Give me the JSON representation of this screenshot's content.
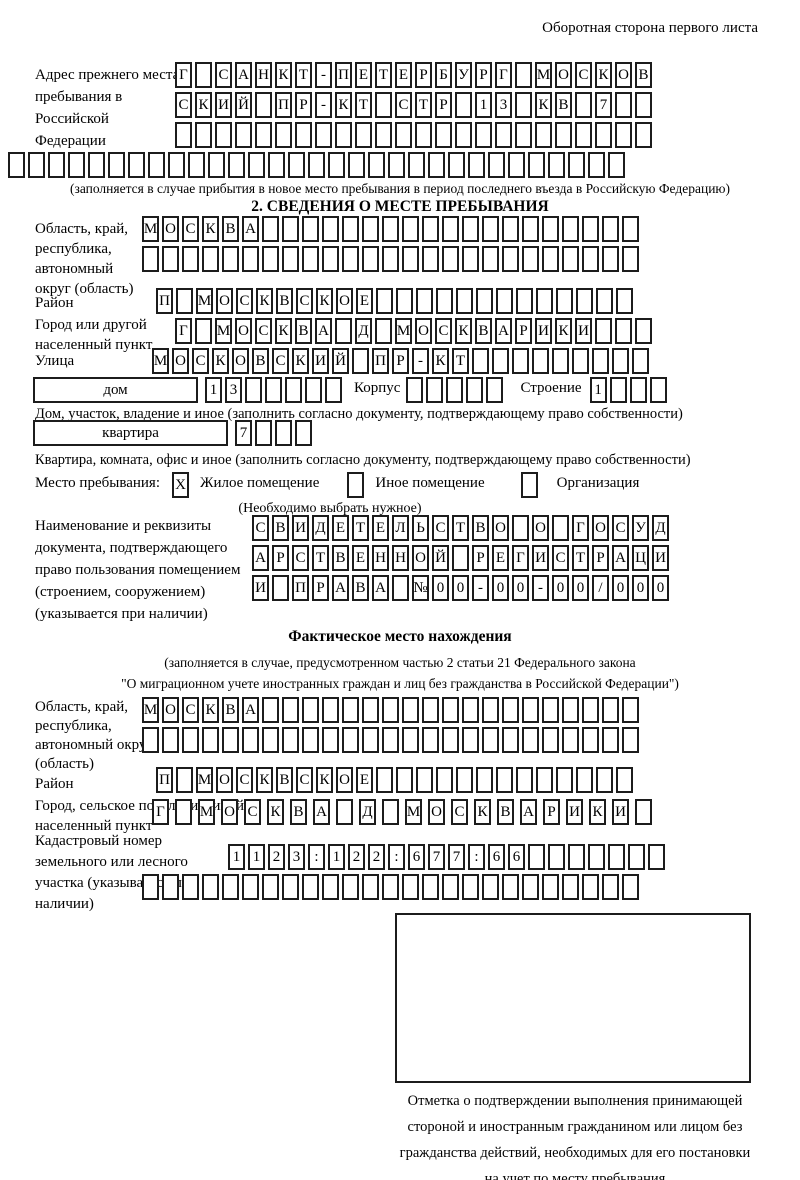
{
  "colors": {
    "ink": "#1c1c1c",
    "paper": "#ffffff"
  },
  "header_note": "Оборотная сторона первого листа",
  "prev_address": {
    "label": "Адрес прежнего места пребывания в Российской Федерации",
    "row1": "Г САНКТ-ПЕТЕРБУРГ МОСКОВ",
    "row2": "СКИЙ ПР-КТ СТР 13 КВ 7  ",
    "row3": "                        ",
    "row4": "                               ",
    "note": "(заполняется в случае прибытия в новое место пребывания в период последнего въезда в Российскую Федерацию)"
  },
  "section2": {
    "title": "2. СВЕДЕНИЯ О МЕСТЕ ПРЕБЫВАНИЯ",
    "region_label": "Область, край, республика, автономный округ (область)",
    "region_row1": "МОСКВА                   ",
    "region_row2": "                         ",
    "district_label": "Район",
    "district_row": "П МОСКВСКОЕ             ",
    "city_label": "Город или другой населенный пункт",
    "city_row": "Г МОСКВА Д МОСКВАРИКИ   ",
    "street_label": "Улица",
    "street_row": "МОСКОВСКИЙ ПР-КТ         ",
    "house_box_label": "дом",
    "house_cells": "13     ",
    "korpus_label": "Корпус",
    "korpus_cells": "     ",
    "stroenie_label": "Строение",
    "stroenie_cells": "1   ",
    "house_note": "Дом, участок, владение и иное (заполнить согласно документу, подтверждающему право собственности)",
    "apartment_box_label": "квартира",
    "apartment_cells": "7   ",
    "apartment_note": "Квартира, комната, офис и иное (заполнить согласно документу, подтверждающему право собственности)",
    "stay_label": "Место пребывания:",
    "stay_opt1_mark": "X",
    "stay_opt1_label": "Жилое помещение",
    "stay_opt2_mark": " ",
    "stay_opt2_label": "Иное помещение",
    "stay_opt3_mark": " ",
    "stay_opt3_label": "Организация",
    "stay_note": "(Необходимо выбрать нужное)",
    "document_label": "Наименование и реквизиты документа, подтверждающего право пользования помещением (строением, сооружением) (указывается при наличии)",
    "document_row1": "СВИДЕТЕЛЬСТВО О ГОСУД",
    "document_row2": "АРСТВЕННОЙ РЕГИСТРАЦИ",
    "document_row3": "И ПРАВА №00-00-00/000"
  },
  "actual": {
    "title": "Фактическое место нахождения",
    "note1": "(заполняется в случае, предусмотренном частью 2 статьи 21 Федерального закона",
    "note2": "\"О миграционном учете иностранных граждан и лиц без гражданства в Российской Федерации\")",
    "region_label": "Область, край, республика, автономный округ (область)",
    "region_row1": "МОСКВА                   ",
    "region_row2": "                         ",
    "district_label": "Район",
    "district_row": "П МОСКВСКОЕ             ",
    "city_label": "Город, сельское поселение, иной населенный пункт",
    "city_row": "Г МОСКВА Д МОСКВАРИКИ ",
    "cadastral_label": "Кадастровый номер земельного или лесного участка (указывается при наличии)",
    "cadastral_row1": "1123:122:677:66       ",
    "cadastral_row2": "                         ",
    "stamp_caption": "Отметка о подтверждении выполнения принимающей стороной и иностранным гражданином или лицом без гражданства действий, необходимых для его постановки на учет по месту пребывания"
  }
}
